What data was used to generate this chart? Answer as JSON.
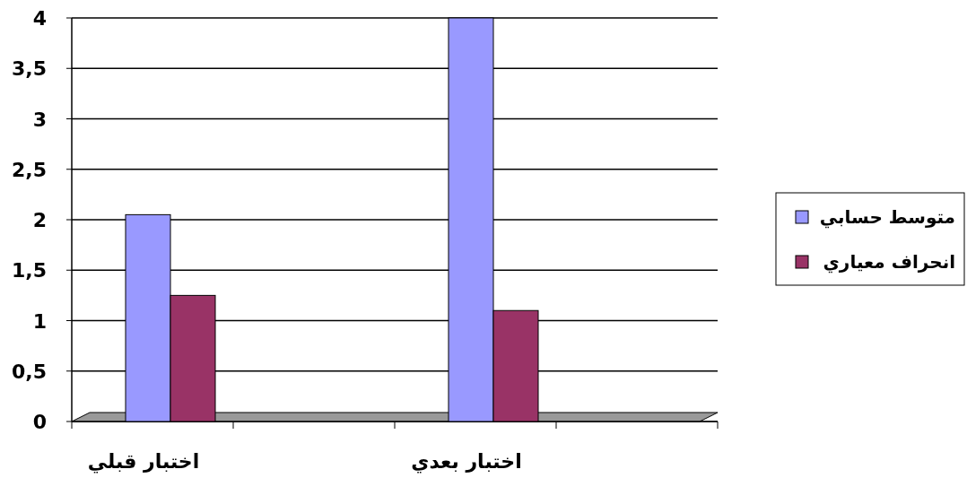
{
  "chart_data": {
    "type": "bar",
    "categories": [
      "اختبار قبلي",
      null,
      "اختبار بعدي",
      null
    ],
    "series": [
      {
        "name": "متوسط حسابي",
        "color": "#9999ff",
        "values": [
          2.05,
          null,
          4.0,
          null
        ]
      },
      {
        "name": "انحراف معياري",
        "color": "#993366",
        "values": [
          1.25,
          null,
          1.1,
          null
        ]
      }
    ],
    "ylim": [
      0,
      4
    ],
    "yticks": [
      0,
      {
        "value": 0.5,
        "label": "0,5"
      },
      1,
      {
        "value": 1.5,
        "label": "1,5"
      },
      2,
      {
        "value": 2.5,
        "label": "2,5"
      },
      3,
      {
        "value": 3.5,
        "label": "3,5"
      },
      4
    ],
    "grid": "y",
    "legend": "right"
  }
}
